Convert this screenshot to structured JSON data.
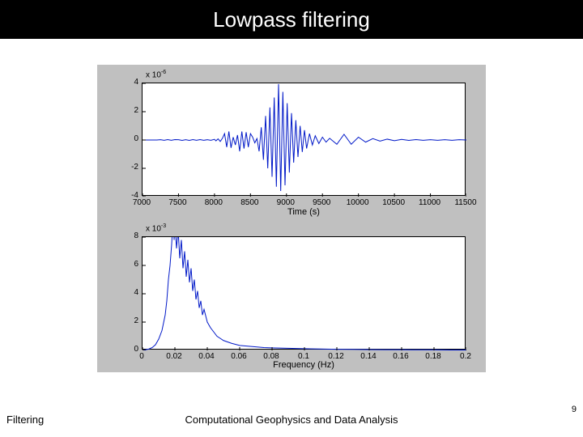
{
  "slide": {
    "title": "Lowpass filtering",
    "footer_left": "Filtering",
    "footer_center": "Computational Geophysics and Data Analysis",
    "page_number": "9"
  },
  "figure": {
    "background_color": "#c0c0c0",
    "plot_background": "#ffffff",
    "axis_color": "#000000",
    "line_color": "#0018c8",
    "line_width": 1,
    "panel1": {
      "type": "line",
      "exponent_label": "x 10^-6",
      "xlabel": "Time (s)",
      "xlim": [
        7000,
        11500
      ],
      "ylim": [
        -4,
        4
      ],
      "xticks": [
        7000,
        7500,
        8000,
        8500,
        9000,
        9500,
        10000,
        10500,
        11000,
        11500
      ],
      "yticks": [
        -4,
        -2,
        0,
        2,
        4
      ],
      "series": [
        [
          7000,
          0
        ],
        [
          7050,
          0
        ],
        [
          7100,
          0
        ],
        [
          7150,
          0
        ],
        [
          7200,
          0
        ],
        [
          7250,
          0.02
        ],
        [
          7300,
          -0.02
        ],
        [
          7350,
          0.03
        ],
        [
          7400,
          -0.02
        ],
        [
          7450,
          0.03
        ],
        [
          7500,
          0.02
        ],
        [
          7550,
          -0.03
        ],
        [
          7600,
          0.02
        ],
        [
          7650,
          -0.03
        ],
        [
          7700,
          0.03
        ],
        [
          7750,
          -0.02
        ],
        [
          7800,
          0.03
        ],
        [
          7850,
          -0.02
        ],
        [
          7900,
          0.02
        ],
        [
          7950,
          -0.02
        ],
        [
          8000,
          0.05
        ],
        [
          8020,
          -0.06
        ],
        [
          8050,
          0.08
        ],
        [
          8080,
          -0.1
        ],
        [
          8110,
          0.12
        ],
        [
          8140,
          0.45
        ],
        [
          8170,
          -0.5
        ],
        [
          8200,
          0.6
        ],
        [
          8230,
          -0.55
        ],
        [
          8260,
          0.2
        ],
        [
          8290,
          -0.35
        ],
        [
          8320,
          0.35
        ],
        [
          8350,
          -0.8
        ],
        [
          8380,
          0.6
        ],
        [
          8410,
          -0.6
        ],
        [
          8440,
          0.55
        ],
        [
          8470,
          -0.5
        ],
        [
          8500,
          0.45
        ],
        [
          8530,
          0.2
        ],
        [
          8560,
          -0.2
        ],
        [
          8590,
          0.1
        ],
        [
          8620,
          -0.8
        ],
        [
          8650,
          0.9
        ],
        [
          8680,
          -1.4
        ],
        [
          8710,
          1.7
        ],
        [
          8740,
          -2.0
        ],
        [
          8770,
          2.3
        ],
        [
          8800,
          -2.6
        ],
        [
          8830,
          3.0
        ],
        [
          8860,
          -3.3
        ],
        [
          8890,
          3.95
        ],
        [
          8920,
          -3.6
        ],
        [
          8950,
          3.4
        ],
        [
          8980,
          -3.2
        ],
        [
          9010,
          2.6
        ],
        [
          9040,
          -2.3
        ],
        [
          9070,
          1.9
        ],
        [
          9100,
          -1.6
        ],
        [
          9130,
          1.4
        ],
        [
          9160,
          -1.2
        ],
        [
          9190,
          1.0
        ],
        [
          9220,
          -0.85
        ],
        [
          9250,
          0.7
        ],
        [
          9280,
          -0.6
        ],
        [
          9320,
          0.45
        ],
        [
          9360,
          -0.35
        ],
        [
          9400,
          0.3
        ],
        [
          9450,
          -0.25
        ],
        [
          9500,
          0.2
        ],
        [
          9550,
          -0.15
        ],
        [
          9600,
          0.12
        ],
        [
          9700,
          -0.3
        ],
        [
          9800,
          0.4
        ],
        [
          9900,
          -0.3
        ],
        [
          10000,
          0.2
        ],
        [
          10100,
          -0.15
        ],
        [
          10200,
          0.1
        ],
        [
          10300,
          -0.08
        ],
        [
          10400,
          0.06
        ],
        [
          10500,
          -0.05
        ],
        [
          10600,
          0.04
        ],
        [
          10700,
          -0.03
        ],
        [
          10800,
          0.03
        ],
        [
          10900,
          -0.02
        ],
        [
          11000,
          0.02
        ],
        [
          11100,
          -0.02
        ],
        [
          11200,
          0.02
        ],
        [
          11300,
          -0.02
        ],
        [
          11400,
          0.02
        ],
        [
          11500,
          0
        ]
      ]
    },
    "panel2": {
      "type": "line",
      "exponent_label": "x 10^-3",
      "xlabel": "Frequency (Hz)",
      "xlim": [
        0,
        0.2
      ],
      "ylim": [
        0,
        8
      ],
      "xticks": [
        0,
        0.02,
        0.04,
        0.06,
        0.08,
        0.1,
        0.12,
        0.14,
        0.16,
        0.18,
        0.2
      ],
      "yticks": [
        0,
        2,
        4,
        6,
        8
      ],
      "series": [
        [
          0,
          0
        ],
        [
          0.002,
          0.05
        ],
        [
          0.004,
          0.1
        ],
        [
          0.006,
          0.2
        ],
        [
          0.008,
          0.4
        ],
        [
          0.01,
          0.8
        ],
        [
          0.012,
          1.4
        ],
        [
          0.014,
          2.5
        ],
        [
          0.015,
          3.5
        ],
        [
          0.016,
          5.0
        ],
        [
          0.017,
          6.0
        ],
        [
          0.018,
          7.5
        ],
        [
          0.019,
          9.5
        ],
        [
          0.0195,
          7.8
        ],
        [
          0.02,
          9.0
        ],
        [
          0.021,
          7.2
        ],
        [
          0.022,
          8.5
        ],
        [
          0.023,
          6.5
        ],
        [
          0.024,
          7.8
        ],
        [
          0.025,
          5.8
        ],
        [
          0.026,
          7.0
        ],
        [
          0.027,
          5.2
        ],
        [
          0.028,
          6.4
        ],
        [
          0.029,
          4.8
        ],
        [
          0.03,
          5.8
        ],
        [
          0.031,
          4.2
        ],
        [
          0.032,
          5.0
        ],
        [
          0.033,
          3.6
        ],
        [
          0.034,
          4.2
        ],
        [
          0.035,
          3.0
        ],
        [
          0.036,
          3.5
        ],
        [
          0.037,
          2.5
        ],
        [
          0.038,
          2.9
        ],
        [
          0.04,
          2.0
        ],
        [
          0.042,
          1.6
        ],
        [
          0.044,
          1.3
        ],
        [
          0.046,
          1.0
        ],
        [
          0.048,
          0.85
        ],
        [
          0.05,
          0.7
        ],
        [
          0.055,
          0.5
        ],
        [
          0.06,
          0.35
        ],
        [
          0.065,
          0.3
        ],
        [
          0.07,
          0.25
        ],
        [
          0.075,
          0.2
        ],
        [
          0.08,
          0.18
        ],
        [
          0.09,
          0.15
        ],
        [
          0.1,
          0.12
        ],
        [
          0.11,
          0.1
        ],
        [
          0.12,
          0.08
        ],
        [
          0.13,
          0.07
        ],
        [
          0.14,
          0.06
        ],
        [
          0.15,
          0.05
        ],
        [
          0.16,
          0.05
        ],
        [
          0.17,
          0.04
        ],
        [
          0.18,
          0.04
        ],
        [
          0.19,
          0.03
        ],
        [
          0.2,
          0.03
        ]
      ]
    }
  }
}
